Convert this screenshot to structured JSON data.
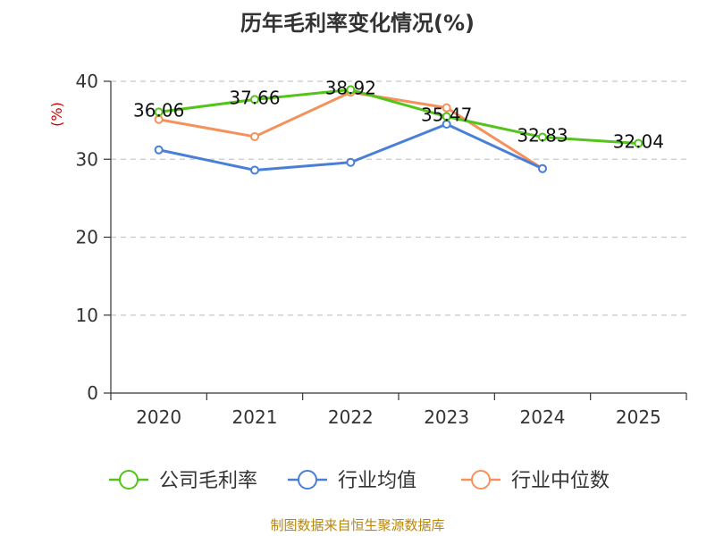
{
  "chart_data": {
    "type": "line",
    "title": "历年毛利率变化情况(%)",
    "ylabel": "(%)",
    "xlabel": "",
    "categories": [
      "2020",
      "2021",
      "2022",
      "2023",
      "2024",
      "2025"
    ],
    "ylim": [
      0,
      40
    ],
    "yticks": [
      0,
      10,
      20,
      30,
      40
    ],
    "grid": true,
    "legend_position": "bottom",
    "series": [
      {
        "name": "公司毛利率",
        "color": "#52c41a",
        "values": [
          36.06,
          37.66,
          38.92,
          35.47,
          32.83,
          32.04
        ],
        "labels": [
          "36.06",
          "37.66",
          "38.92",
          "35.47",
          "32.83",
          "32.04"
        ]
      },
      {
        "name": "行业均值",
        "color": "#4a7fd8",
        "values": [
          31.2,
          28.6,
          29.6,
          34.5,
          28.8,
          null
        ]
      },
      {
        "name": "行业中位数",
        "color": "#f5915a",
        "values": [
          35.1,
          32.9,
          38.6,
          36.6,
          28.8,
          null
        ]
      }
    ]
  },
  "footer": {
    "source": "制图数据来自恒生聚源数据库",
    "color": "#b8860b"
  },
  "ylabel_color": "#cc0000"
}
